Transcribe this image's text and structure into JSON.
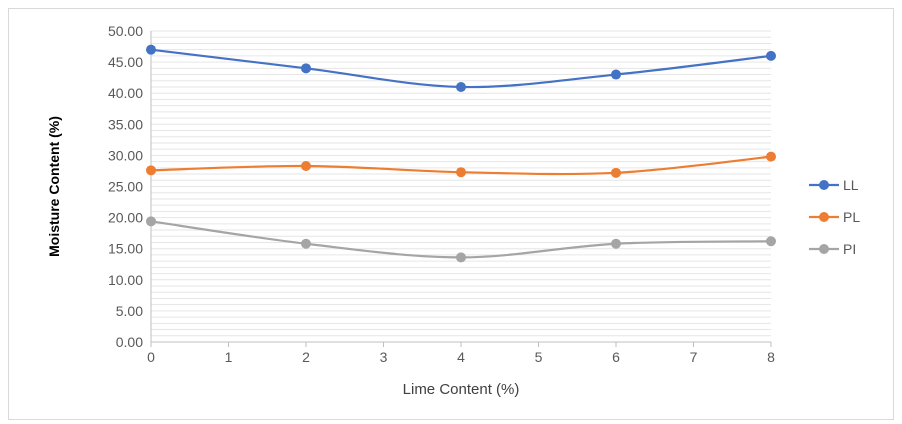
{
  "chart_data": {
    "type": "line",
    "xlabel": "Lime Content (%)",
    "ylabel": "Moisture Content (%)",
    "xlim": [
      0,
      8
    ],
    "ylim": [
      0,
      50
    ],
    "x_ticks": [
      0,
      1,
      2,
      3,
      4,
      5,
      6,
      7,
      8
    ],
    "y_ticks": [
      "0.00",
      "5.00",
      "10.00",
      "15.00",
      "20.00",
      "25.00",
      "30.00",
      "35.00",
      "40.00",
      "45.00",
      "50.00"
    ],
    "grid": true,
    "legend_position": "right",
    "x": [
      0,
      2,
      4,
      6,
      8
    ],
    "series": [
      {
        "name": "LL",
        "color": "#4472c4",
        "values": [
          47.0,
          44.0,
          41.0,
          43.0,
          46.0
        ]
      },
      {
        "name": "PL",
        "color": "#ed7d31",
        "values": [
          27.6,
          28.3,
          27.3,
          27.2,
          29.8
        ]
      },
      {
        "name": "PI",
        "color": "#a5a5a5",
        "values": [
          19.4,
          15.8,
          13.6,
          15.8,
          16.2
        ]
      }
    ]
  }
}
